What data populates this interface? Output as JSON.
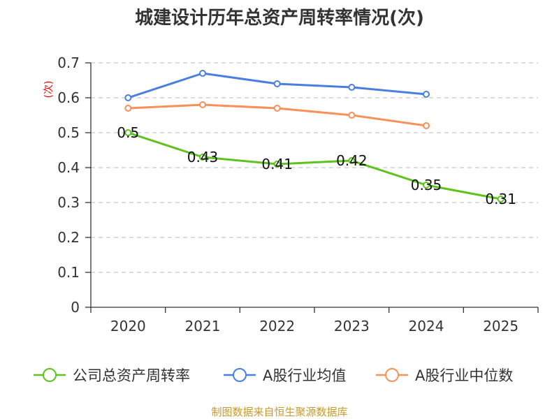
{
  "chart_data": {
    "type": "line",
    "title": "城建设计历年总资产周转率情况(次)",
    "ylabel": "(次)",
    "categories": [
      "2020",
      "2021",
      "2022",
      "2023",
      "2024",
      "2025"
    ],
    "ylim": [
      0,
      0.7
    ],
    "yticks": [
      "0",
      "0.1",
      "0.2",
      "0.3",
      "0.4",
      "0.5",
      "0.6",
      "0.7"
    ],
    "grid": true,
    "legend_position": "bottom",
    "series": [
      {
        "name": "公司总资产周转率",
        "color": "#5fc21f",
        "values": [
          0.5,
          0.43,
          0.41,
          0.42,
          0.35,
          0.31
        ],
        "labels": [
          "0.5",
          "0.43",
          "0.41",
          "0.42",
          "0.35",
          "0.31"
        ]
      },
      {
        "name": "A股行业均值",
        "color": "#4a7fe0",
        "values": [
          0.6,
          0.67,
          0.64,
          0.63,
          0.61,
          null
        ]
      },
      {
        "name": "A股行业中位数",
        "color": "#f7915a",
        "values": [
          0.57,
          0.58,
          0.57,
          0.55,
          0.52,
          null
        ]
      }
    ],
    "source": "制图数据来自恒生聚源数据库"
  }
}
